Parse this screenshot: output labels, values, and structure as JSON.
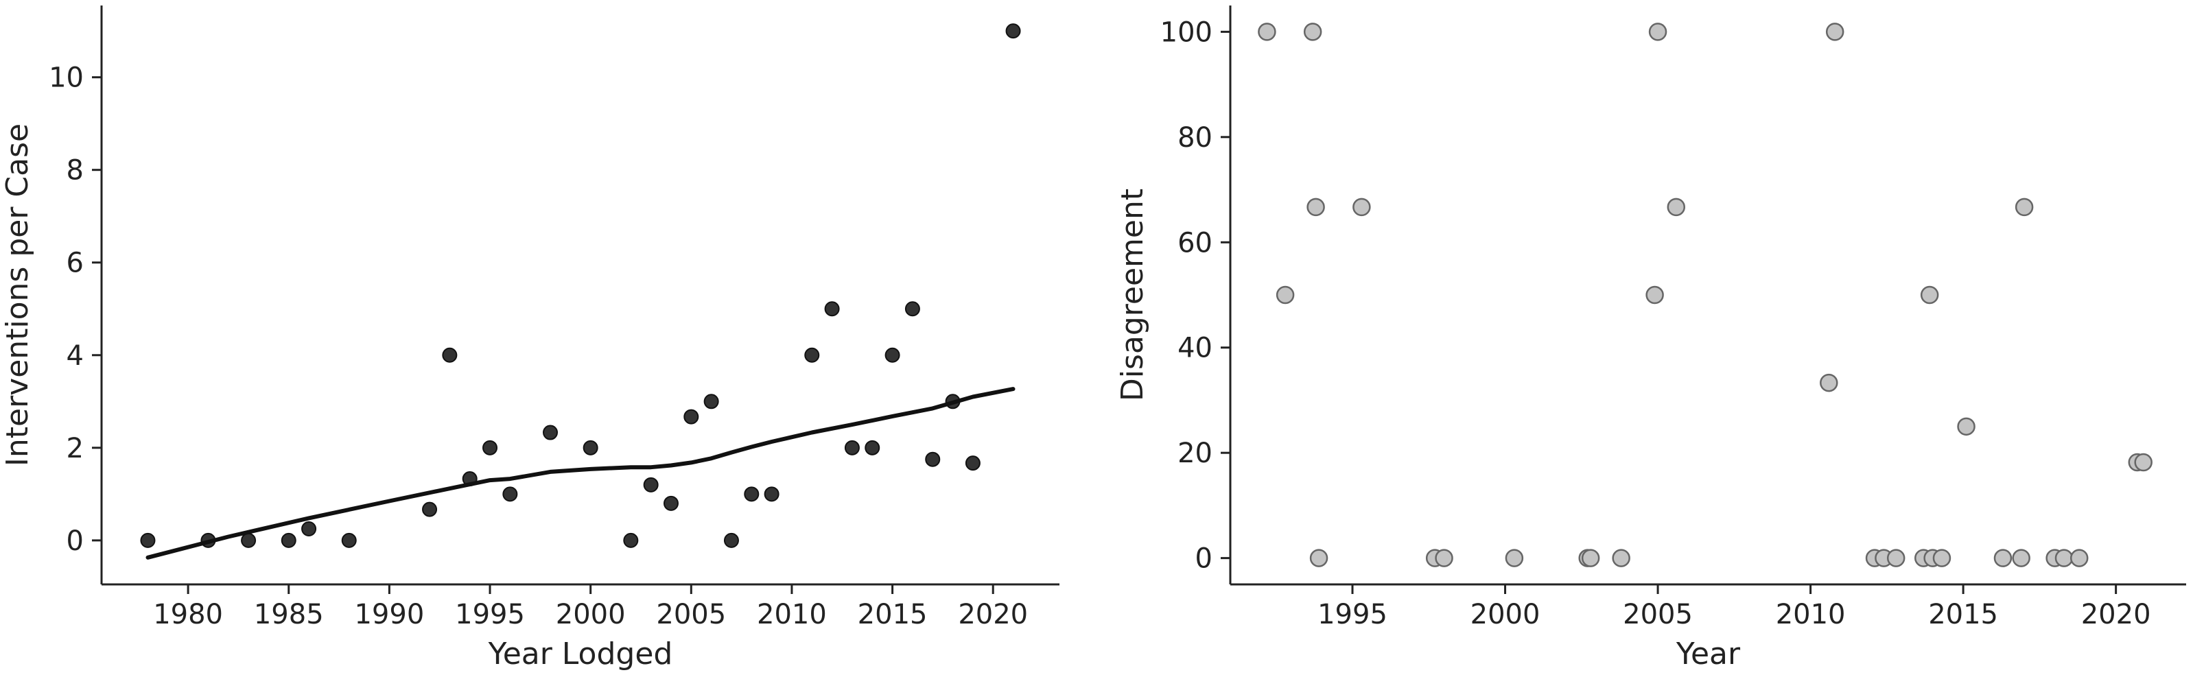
{
  "chart_data": [
    {
      "type": "scatter",
      "xlabel": "Year Lodged",
      "ylabel": "Interventions per Case",
      "xlim": [
        1975.7,
        2023.3
      ],
      "ylim": [
        -0.95,
        11.55
      ],
      "xticks": [
        1980,
        1985,
        1990,
        1995,
        2000,
        2005,
        2010,
        2015,
        2020
      ],
      "yticks": [
        0,
        2,
        4,
        6,
        8,
        10
      ],
      "grid": false,
      "colors": {
        "points": "#333333",
        "line": "#111111",
        "axis": "#222222"
      },
      "series": [
        {
          "kind": "scatter",
          "points": [
            [
              1978,
              0
            ],
            [
              1981,
              0
            ],
            [
              1983,
              0
            ],
            [
              1985,
              0
            ],
            [
              1986,
              0.25
            ],
            [
              1988,
              0
            ],
            [
              1992,
              0.67
            ],
            [
              1993,
              4
            ],
            [
              1994,
              1.33
            ],
            [
              1995,
              2
            ],
            [
              1996,
              1
            ],
            [
              1998,
              2.33
            ],
            [
              2000,
              2
            ],
            [
              2002,
              0
            ],
            [
              2003,
              1.2
            ],
            [
              2004,
              0.8
            ],
            [
              2005,
              2.67
            ],
            [
              2006,
              3
            ],
            [
              2007,
              0
            ],
            [
              2008,
              1
            ],
            [
              2009,
              1
            ],
            [
              2011,
              4
            ],
            [
              2012,
              5
            ],
            [
              2013,
              2
            ],
            [
              2014,
              2
            ],
            [
              2015,
              4
            ],
            [
              2016,
              5
            ],
            [
              2017,
              1.75
            ],
            [
              2018,
              3
            ],
            [
              2019,
              1.67
            ],
            [
              2021,
              11
            ]
          ]
        },
        {
          "kind": "line",
          "points": [
            [
              1978,
              -0.37
            ],
            [
              1982,
              0.08
            ],
            [
              1986,
              0.48
            ],
            [
              1990,
              0.85
            ],
            [
              1993,
              1.12
            ],
            [
              1995,
              1.3
            ],
            [
              1996,
              1.33
            ],
            [
              1998,
              1.48
            ],
            [
              2000,
              1.54
            ],
            [
              2002,
              1.58
            ],
            [
              2003,
              1.58
            ],
            [
              2004,
              1.62
            ],
            [
              2005,
              1.68
            ],
            [
              2006,
              1.77
            ],
            [
              2007,
              1.9
            ],
            [
              2008,
              2.02
            ],
            [
              2009,
              2.13
            ],
            [
              2011,
              2.33
            ],
            [
              2013,
              2.5
            ],
            [
              2015,
              2.68
            ],
            [
              2017,
              2.85
            ],
            [
              2019,
              3.1
            ],
            [
              2021,
              3.27
            ]
          ]
        }
      ]
    },
    {
      "type": "scatter",
      "xlabel": "Year",
      "ylabel": "Disagreement",
      "xlim": [
        1991.0,
        2022.3
      ],
      "ylim": [
        -5,
        105
      ],
      "xticks": [
        1995,
        2000,
        2005,
        2010,
        2015,
        2020
      ],
      "yticks": [
        0,
        20,
        40,
        60,
        80,
        100
      ],
      "grid": false,
      "colors": {
        "fill": "#c4c4c4",
        "stroke": "#666666",
        "axis": "#222222"
      },
      "series": [
        {
          "kind": "scatter",
          "points": [
            [
              1992.2,
              100
            ],
            [
              1992.8,
              50
            ],
            [
              1993.7,
              100
            ],
            [
              1993.8,
              66.7
            ],
            [
              1993.9,
              0
            ],
            [
              1995.3,
              66.7
            ],
            [
              1997.7,
              0
            ],
            [
              1998.0,
              0
            ],
            [
              2000.3,
              0
            ],
            [
              2002.7,
              0
            ],
            [
              2002.8,
              0
            ],
            [
              2003.8,
              0
            ],
            [
              2004.9,
              50
            ],
            [
              2005.0,
              100
            ],
            [
              2005.6,
              66.7
            ],
            [
              2010.6,
              33.3
            ],
            [
              2010.8,
              100
            ],
            [
              2012.1,
              0
            ],
            [
              2012.4,
              0
            ],
            [
              2012.8,
              0
            ],
            [
              2013.7,
              0
            ],
            [
              2013.9,
              50
            ],
            [
              2014.0,
              0
            ],
            [
              2014.3,
              0
            ],
            [
              2015.1,
              25
            ],
            [
              2016.3,
              0
            ],
            [
              2016.9,
              0
            ],
            [
              2017.0,
              66.7
            ],
            [
              2018.0,
              0
            ],
            [
              2018.3,
              0
            ],
            [
              2018.8,
              0
            ],
            [
              2020.7,
              18.2
            ],
            [
              2020.9,
              18.2
            ]
          ]
        }
      ]
    }
  ]
}
